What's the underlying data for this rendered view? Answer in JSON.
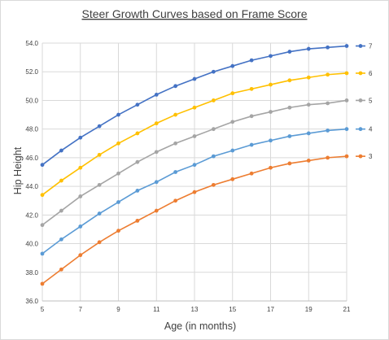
{
  "chart_data": {
    "type": "line",
    "title": "Steer Growth Curves based on Frame Score",
    "xlabel": "Age (in months)",
    "ylabel": "Hip Height",
    "xlim": [
      5,
      21
    ],
    "ylim": [
      36.0,
      54.0
    ],
    "x_ticks": [
      "5",
      "7",
      "9",
      "11",
      "13",
      "15",
      "17",
      "19",
      "21"
    ],
    "y_ticks": [
      "36.0",
      "38.0",
      "40.0",
      "42.0",
      "44.0",
      "46.0",
      "48.0",
      "50.0",
      "52.0",
      "54.0"
    ],
    "grid": true,
    "legend_position": "right",
    "x": [
      5,
      6,
      7,
      8,
      9,
      10,
      11,
      12,
      13,
      14,
      15,
      16,
      17,
      18,
      19,
      20,
      21
    ],
    "series": [
      {
        "name": "7",
        "color": "#4472c4",
        "values": [
          45.5,
          46.5,
          47.4,
          48.2,
          49.0,
          49.7,
          50.4,
          51.0,
          51.5,
          52.0,
          52.4,
          52.8,
          53.1,
          53.4,
          53.6,
          53.7,
          53.8
        ]
      },
      {
        "name": "6",
        "color": "#ffc000",
        "values": [
          43.4,
          44.4,
          45.3,
          46.2,
          47.0,
          47.7,
          48.4,
          49.0,
          49.5,
          50.0,
          50.5,
          50.8,
          51.1,
          51.4,
          51.6,
          51.8,
          51.9
        ]
      },
      {
        "name": "5",
        "color": "#a5a5a5",
        "values": [
          41.3,
          42.3,
          43.3,
          44.1,
          44.9,
          45.7,
          46.4,
          47.0,
          47.5,
          48.0,
          48.5,
          48.9,
          49.2,
          49.5,
          49.7,
          49.8,
          50.0
        ]
      },
      {
        "name": "4",
        "color": "#5b9bd5",
        "values": [
          39.3,
          40.3,
          41.2,
          42.1,
          42.9,
          43.7,
          44.3,
          45.0,
          45.5,
          46.1,
          46.5,
          46.9,
          47.2,
          47.5,
          47.7,
          47.9,
          48.0
        ]
      },
      {
        "name": "3",
        "color": "#ed7d31",
        "values": [
          37.2,
          38.2,
          39.2,
          40.1,
          40.9,
          41.6,
          42.3,
          43.0,
          43.6,
          44.1,
          44.5,
          44.9,
          45.3,
          45.6,
          45.8,
          46.0,
          46.1
        ]
      }
    ]
  }
}
